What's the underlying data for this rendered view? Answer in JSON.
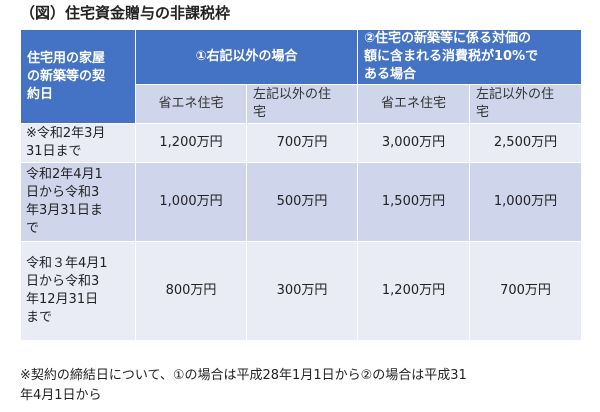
{
  "title": "（図）住宅資金贈与の非課税枠",
  "table": {
    "corner_header": [
      "住宅用の家屋",
      "の新築等の契",
      "約日"
    ],
    "group1_header": "①右記以外の場合",
    "group2_header": [
      "②住宅の新築等に係る対価の",
      "額に含まれる消費税が10%で",
      "ある場合"
    ],
    "subheaders": {
      "g1_energy": "省エネ住宅",
      "g1_other": [
        "左記以外の住",
        "宅"
      ],
      "g2_energy": "省エネ住宅",
      "g2_other": [
        "左記以外の住",
        "宅"
      ]
    },
    "rows": [
      {
        "label": [
          "※令和2年3月",
          "31日まで"
        ],
        "values": [
          "1,200万円",
          "700万円",
          "3,000万円",
          "2,500万円"
        ]
      },
      {
        "label": [
          "令和2年4月1",
          "日から令和3",
          "年3月31日ま",
          "で"
        ],
        "values": [
          "1,000万円",
          "500万円",
          "1,500万円",
          "1,000万円"
        ]
      },
      {
        "label": [
          "令和３年4月1",
          "日から令和3",
          "年12月31日",
          "まで"
        ],
        "values": [
          "800万円",
          "300万円",
          "1,200万円",
          "700万円"
        ]
      }
    ]
  },
  "footnote": [
    "※契約の締結日について、①の場合は平成28年1月1日から②の場合は平成31",
    "年4月1日から"
  ],
  "colors": {
    "header_blue": "#4472c4",
    "band_dark": "#cfd5ea",
    "band_light": "#e9ebf5"
  }
}
